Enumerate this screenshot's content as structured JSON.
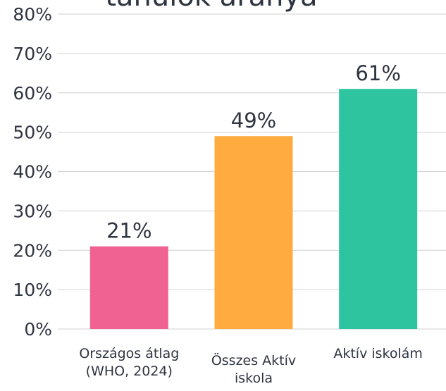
{
  "chart_data": {
    "type": "bar",
    "title": "tanulók aránya",
    "categories": [
      "Országos átlag (WHO, 2024)",
      "Összes Aktív iskola",
      "Aktív iskolám"
    ],
    "values": [
      21,
      49,
      61
    ],
    "value_labels": [
      "21%",
      "49%",
      "61%"
    ],
    "colors": [
      "#f06292",
      "#ffab40",
      "#2ec4a0"
    ],
    "ylim": [
      0,
      80
    ],
    "yticks": [
      {
        "value": 0,
        "label": "0%"
      },
      {
        "value": 10,
        "label": "10%"
      },
      {
        "value": 20,
        "label": "20%"
      },
      {
        "value": 30,
        "label": "30%"
      },
      {
        "value": 40,
        "label": "40%"
      },
      {
        "value": 50,
        "label": "50%"
      },
      {
        "value": 60,
        "label": "60%"
      },
      {
        "value": 70,
        "label": "70%"
      },
      {
        "value": 80,
        "label": "80%"
      }
    ],
    "grid": true
  }
}
